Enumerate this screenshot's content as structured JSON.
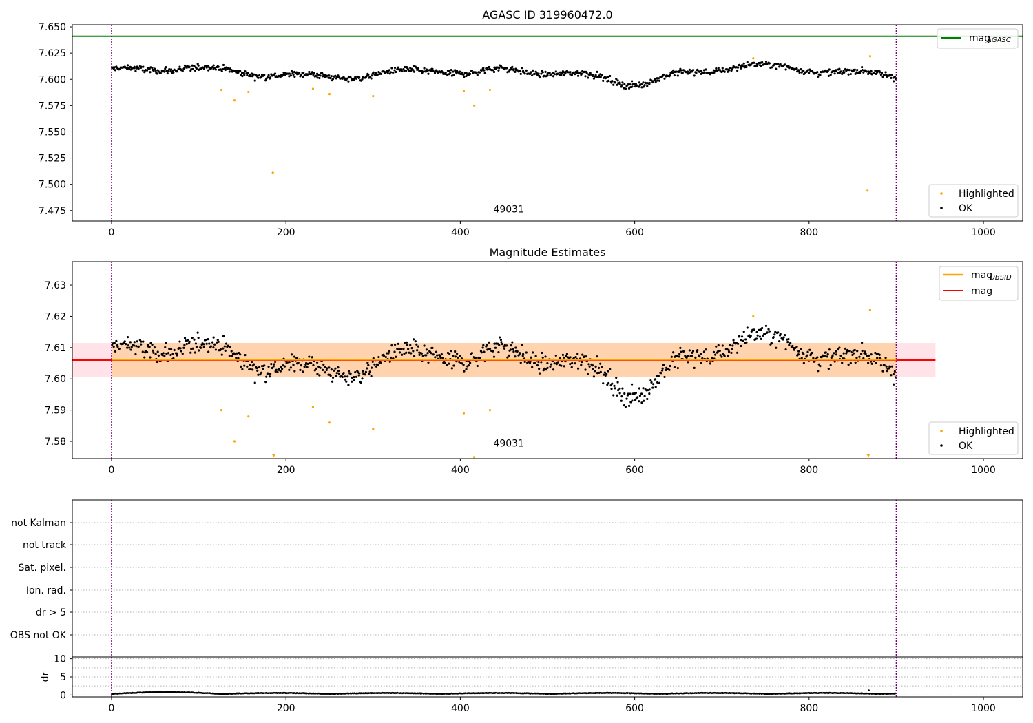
{
  "chart_data": [
    {
      "type": "scatter",
      "title": "AGASC ID 319960472.0",
      "xlim": [
        -45,
        1045
      ],
      "ylim": [
        7.465,
        7.652
      ],
      "xticks": [
        0,
        200,
        400,
        600,
        800,
        1000
      ],
      "yticks": [
        7.475,
        7.5,
        7.525,
        7.55,
        7.575,
        7.6,
        7.625,
        7.65
      ],
      "ytick_labels": [
        "7.475",
        "7.500",
        "7.525",
        "7.550",
        "7.575",
        "7.600",
        "7.625",
        "7.650"
      ],
      "hline": {
        "label": "mag",
        "label_sub": "AGASC",
        "y": 7.641,
        "color": "#008000"
      },
      "vlines": [
        0,
        900
      ],
      "vline_color": "#800080",
      "annotation": {
        "text": "49031",
        "x": 450,
        "y": 7.47
      },
      "legend_top": "top-right",
      "legend_bottom": "bottom-right",
      "series": [
        {
          "name": "OK",
          "color": "#000000",
          "n": 900,
          "x_range": [
            0,
            900
          ],
          "center": 7.606,
          "spread": 0.005
        },
        {
          "name": "Highlighted",
          "color": "#ffa500",
          "points": [
            [
              126,
              7.59
            ],
            [
              141,
              7.58
            ],
            [
              157,
              7.588
            ],
            [
              185,
              7.511
            ],
            [
              231,
              7.591
            ],
            [
              250,
              7.586
            ],
            [
              300,
              7.584
            ],
            [
              404,
              7.589
            ],
            [
              416,
              7.575
            ],
            [
              434,
              7.59
            ],
            [
              736,
              7.62
            ],
            [
              867,
              7.494
            ],
            [
              870,
              7.622
            ]
          ]
        }
      ]
    },
    {
      "type": "scatter",
      "title": "Magnitude Estimates",
      "xlim": [
        -45,
        1045
      ],
      "ylim": [
        7.5745,
        7.6375
      ],
      "xticks": [
        0,
        200,
        400,
        600,
        800,
        1000
      ],
      "yticks": [
        7.58,
        7.59,
        7.6,
        7.61,
        7.62,
        7.63
      ],
      "ytick_labels": [
        "7.58",
        "7.59",
        "7.60",
        "7.61",
        "7.62",
        "7.63"
      ],
      "mag_line": {
        "label": "mag",
        "y": 7.606,
        "color": "#ff0000",
        "band": [
          7.6005,
          7.6115
        ],
        "x_range": [
          -45,
          945
        ]
      },
      "mag_obsid_line": {
        "label": "mag",
        "label_sub": "OBSID",
        "y": 7.6061,
        "color": "#ffa500",
        "band": [
          7.6005,
          7.6115
        ],
        "x_range": [
          0,
          900
        ]
      },
      "vlines": [
        0,
        900
      ],
      "annotation": {
        "text": "49031",
        "x": 450,
        "y": 7.5795
      },
      "markers_below_range": [
        [
          186,
          "Highlighted"
        ],
        [
          868,
          "Highlighted"
        ]
      ],
      "legend_top": "top-right",
      "legend_bottom": "bottom-right",
      "series": [
        {
          "name": "OK",
          "color": "#000000"
        },
        {
          "name": "Highlighted",
          "color": "#ffa500"
        }
      ]
    },
    {
      "type": "table",
      "xlim": [
        -45,
        1045
      ],
      "flag_labels": [
        "not Kalman",
        "not track",
        "Sat. pixel.",
        "Ion. rad.",
        "dr > 5",
        "OBS not OK"
      ],
      "grid": "dotted horizontal",
      "vlines": [
        0,
        900
      ]
    },
    {
      "type": "scatter",
      "ylabel": "dr",
      "xlim": [
        -45,
        1045
      ],
      "ylim": [
        -0.5,
        10.5
      ],
      "xticks": [
        0,
        200,
        400,
        600,
        800,
        1000
      ],
      "yticks": [
        0,
        5,
        10
      ],
      "vlines": [
        0,
        900
      ],
      "series": [
        {
          "name": "dr",
          "color": "#000000",
          "n": 900,
          "x_range": [
            0,
            900
          ],
          "typical": 0.25,
          "max": 1.3
        }
      ]
    }
  ]
}
